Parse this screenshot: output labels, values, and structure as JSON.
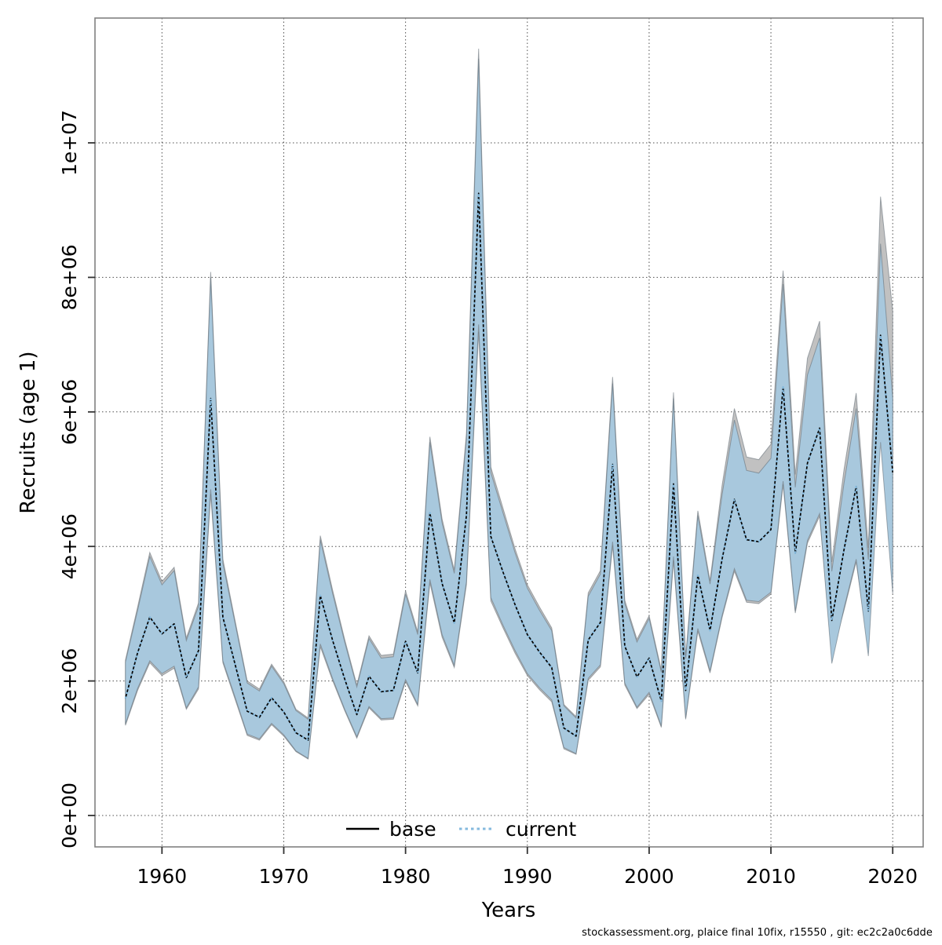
{
  "figure": {
    "xlabel": "Years",
    "ylabel": "Recruits (age 1)",
    "footer": "stockassessment.org, plaice final 10fix, r15550 , git: ec2c2a0c6dde",
    "legend": {
      "base_label": "base",
      "current_label": "current"
    }
  },
  "colors": {
    "base_line": "#000000",
    "current_line": "#85bade",
    "base_band": "#c1c1c1",
    "current_band": "#a8c8dd",
    "band_edge": "rgba(95,105,115,0.55)",
    "grid": "#3c3c3c",
    "frame": "#808080",
    "tick": "#333333",
    "text": "#000000"
  },
  "chart_data": {
    "type": "line",
    "title": "",
    "xlabel": "Years",
    "ylabel": "Recruits (age 1)",
    "grid": "dotted, both axes at every labelled tick",
    "legend_position": "inside plot, bottom center",
    "xlim": [
      1954.5,
      2022.5
    ],
    "ylim": [
      0,
      11860000
    ],
    "x_ticks": [
      {
        "value": 1960,
        "label": "1960"
      },
      {
        "value": 1970,
        "label": "1970"
      },
      {
        "value": 1980,
        "label": "1980"
      },
      {
        "value": 1990,
        "label": "1990"
      },
      {
        "value": 2000,
        "label": "2000"
      },
      {
        "value": 2010,
        "label": "2010"
      },
      {
        "value": 2020,
        "label": "2020"
      }
    ],
    "y_ticks": [
      {
        "value": 0,
        "label": "0e+00"
      },
      {
        "value": 2000000,
        "label": "2e+06"
      },
      {
        "value": 4000000,
        "label": "4e+06"
      },
      {
        "value": 6000000,
        "label": "6e+06"
      },
      {
        "value": 8000000,
        "label": "8e+06"
      },
      {
        "value": 10000000,
        "label": "1e+07"
      }
    ],
    "years": [
      1957,
      1958,
      1959,
      1960,
      1961,
      1962,
      1963,
      1964,
      1965,
      1966,
      1967,
      1968,
      1969,
      1970,
      1971,
      1972,
      1973,
      1974,
      1975,
      1976,
      1977,
      1978,
      1979,
      1980,
      1981,
      1982,
      1983,
      1984,
      1985,
      1986,
      1987,
      1988,
      1989,
      1990,
      1991,
      1992,
      1993,
      1994,
      1995,
      1996,
      1997,
      1998,
      1999,
      2000,
      2001,
      2002,
      2003,
      2004,
      2005,
      2006,
      2007,
      2008,
      2009,
      2010,
      2011,
      2012,
      2013,
      2014,
      2015,
      2016,
      2017,
      2018,
      2019,
      2020
    ],
    "series": [
      {
        "name": "base",
        "line_style": "solid",
        "line_color": "#000000",
        "band_color": "#c1c1c1",
        "mid": [
          1740000,
          2420000,
          2950000,
          2700000,
          2850000,
          2050000,
          2450000,
          6200000,
          2950000,
          2250000,
          1550000,
          1460000,
          1750000,
          1540000,
          1230000,
          1120000,
          3270000,
          2610000,
          2030000,
          1500000,
          2070000,
          1840000,
          1860000,
          2590000,
          2120000,
          4500000,
          3450000,
          2860000,
          4460000,
          9250000,
          4150000,
          3620000,
          3130000,
          2690000,
          2430000,
          2200000,
          1300000,
          1180000,
          2610000,
          2870000,
          5220000,
          2520000,
          2060000,
          2340000,
          1700000,
          4930000,
          1860000,
          3570000,
          2750000,
          3820000,
          4700000,
          4100000,
          4070000,
          4250000,
          6370000,
          3900000,
          5240000,
          5760000,
          2900000,
          3950000,
          4890000,
          3040000,
          7140000,
          5100000
        ],
        "lo": [
          1340000,
          1860000,
          2270000,
          2080000,
          2190000,
          1580000,
          1880000,
          4780000,
          2270000,
          1730000,
          1190000,
          1120000,
          1350000,
          1180000,
          950000,
          840000,
          2510000,
          2010000,
          1560000,
          1150000,
          1600000,
          1420000,
          1430000,
          1990000,
          1630000,
          3460000,
          2650000,
          2200000,
          3430000,
          7190000,
          3190000,
          2790000,
          2410000,
          2080000,
          1870000,
          1690000,
          990000,
          910000,
          2010000,
          2210000,
          4010000,
          1940000,
          1590000,
          1800000,
          1310000,
          3790000,
          1430000,
          2740000,
          2120000,
          2950000,
          3630000,
          3170000,
          3150000,
          3290000,
          4920000,
          3010000,
          4050000,
          4450000,
          2380000,
          3050000,
          3770000,
          2500000,
          5700000,
          3550000
        ],
        "hi": [
          2310000,
          3100000,
          3910000,
          3480000,
          3690000,
          2640000,
          3160000,
          8080000,
          3810000,
          2900000,
          2000000,
          1880000,
          2250000,
          1990000,
          1580000,
          1450000,
          4160000,
          3360000,
          2620000,
          1940000,
          2670000,
          2380000,
          2400000,
          3340000,
          2730000,
          5630000,
          4410000,
          3650000,
          5680000,
          11400000,
          5180000,
          4570000,
          3960000,
          3430000,
          3100000,
          2790000,
          1650000,
          1470000,
          3310000,
          3640000,
          6520000,
          3200000,
          2620000,
          2970000,
          2160000,
          6290000,
          2360000,
          4530000,
          3490000,
          4920000,
          6050000,
          5330000,
          5290000,
          5520000,
          8100000,
          5070000,
          6800000,
          7350000,
          3770000,
          5140000,
          6280000,
          3980000,
          9200000,
          7500000
        ]
      },
      {
        "name": "current",
        "line_style": "dotted",
        "line_color": "#85bade",
        "band_color": "#a8c8dd",
        "mid": [
          1740000,
          2420000,
          2950000,
          2700000,
          2850000,
          2050000,
          2450000,
          6200000,
          2950000,
          2250000,
          1550000,
          1460000,
          1750000,
          1540000,
          1230000,
          1120000,
          3270000,
          2610000,
          2030000,
          1500000,
          2070000,
          1840000,
          1860000,
          2590000,
          2120000,
          4500000,
          3450000,
          2860000,
          4460000,
          9250000,
          4150000,
          3620000,
          3130000,
          2690000,
          2430000,
          2200000,
          1300000,
          1180000,
          2610000,
          2870000,
          5220000,
          2520000,
          2060000,
          2340000,
          1700000,
          4930000,
          1860000,
          3570000,
          2750000,
          3820000,
          4700000,
          4100000,
          4070000,
          4250000,
          6370000,
          3900000,
          5240000,
          5760000,
          2900000,
          3950000,
          4890000,
          3040000,
          7140000,
          5100000
        ],
        "lo": [
          1360000,
          1890000,
          2300000,
          2110000,
          2220000,
          1600000,
          1910000,
          4850000,
          2300000,
          1760000,
          1210000,
          1140000,
          1370000,
          1200000,
          960000,
          850000,
          2550000,
          2040000,
          1580000,
          1170000,
          1620000,
          1440000,
          1450000,
          2020000,
          1650000,
          3510000,
          2690000,
          2230000,
          3480000,
          7300000,
          3240000,
          2830000,
          2450000,
          2110000,
          1900000,
          1720000,
          1010000,
          920000,
          2040000,
          2240000,
          4070000,
          1970000,
          1610000,
          1830000,
          1330000,
          3850000,
          1450000,
          2780000,
          2150000,
          2980000,
          3670000,
          3200000,
          3180000,
          3320000,
          4970000,
          3040000,
          4090000,
          4490000,
          2260000,
          3080000,
          3810000,
          2370000,
          5550000,
          3300000
        ],
        "hi": [
          2280000,
          3050000,
          3850000,
          3430000,
          3640000,
          2600000,
          3110000,
          8000000,
          3750000,
          2860000,
          1970000,
          1850000,
          2220000,
          1960000,
          1560000,
          1430000,
          4100000,
          3310000,
          2580000,
          1910000,
          2630000,
          2340000,
          2360000,
          3290000,
          2690000,
          5550000,
          4350000,
          3600000,
          5600000,
          11250000,
          5100000,
          4500000,
          3900000,
          3380000,
          3050000,
          2750000,
          1630000,
          1450000,
          3260000,
          3590000,
          6420000,
          3150000,
          2580000,
          2930000,
          2130000,
          6200000,
          2330000,
          4460000,
          3440000,
          4780000,
          5880000,
          5130000,
          5090000,
          5310000,
          7900000,
          4880000,
          6550000,
          7100000,
          3630000,
          4940000,
          6050000,
          3800000,
          8500000,
          6200000
        ]
      }
    ]
  }
}
